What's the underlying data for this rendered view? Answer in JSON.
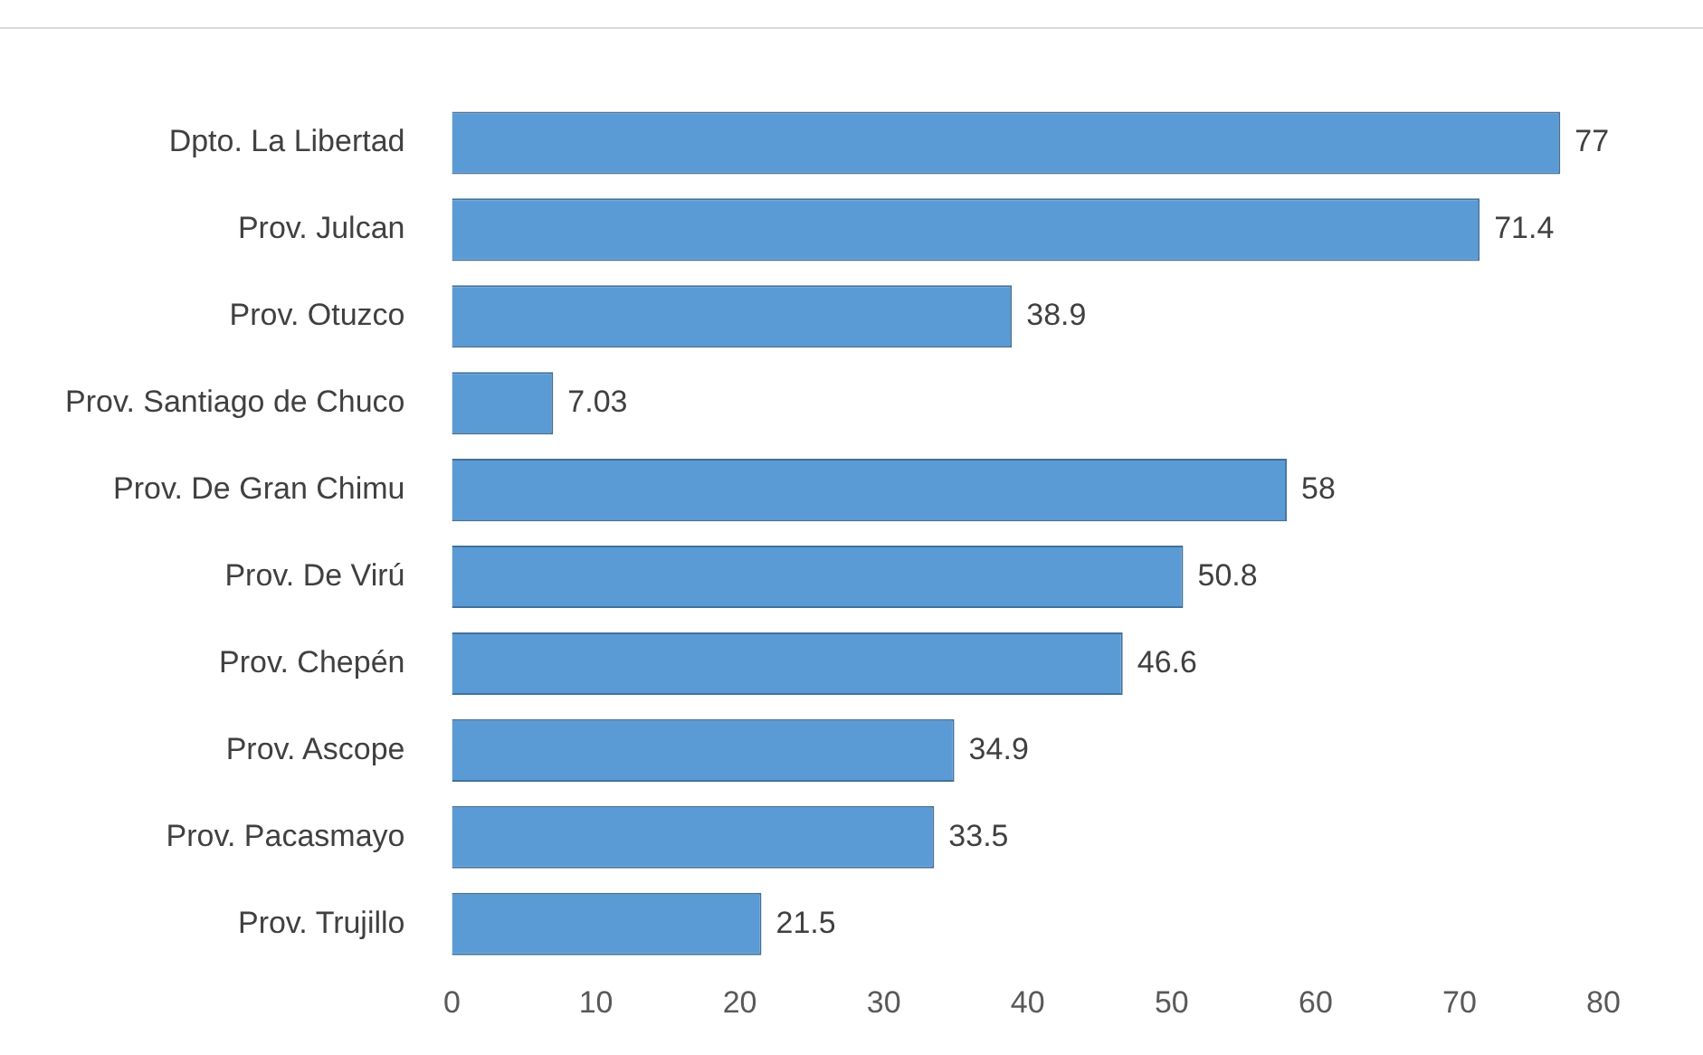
{
  "chart_data": {
    "type": "bar",
    "orientation": "horizontal",
    "categories": [
      "Dpto. La Libertad",
      "Prov. Julcan",
      "Prov. Otuzco",
      "Prov. Santiago de Chuco",
      "Prov. De Gran Chimu",
      "Prov. De Virú",
      "Prov. Chepén",
      "Prov. Ascope",
      "Prov. Pacasmayo",
      "Prov. Trujillo"
    ],
    "values": [
      77,
      71.4,
      38.9,
      7.03,
      58,
      50.8,
      46.6,
      34.9,
      33.5,
      21.5
    ],
    "color": "#5b9bd5",
    "xlim": [
      0,
      80
    ],
    "xticks": [
      0,
      10,
      20,
      30,
      40,
      50,
      60,
      70,
      80
    ],
    "grid": false,
    "legend": false,
    "data_labels": true
  }
}
